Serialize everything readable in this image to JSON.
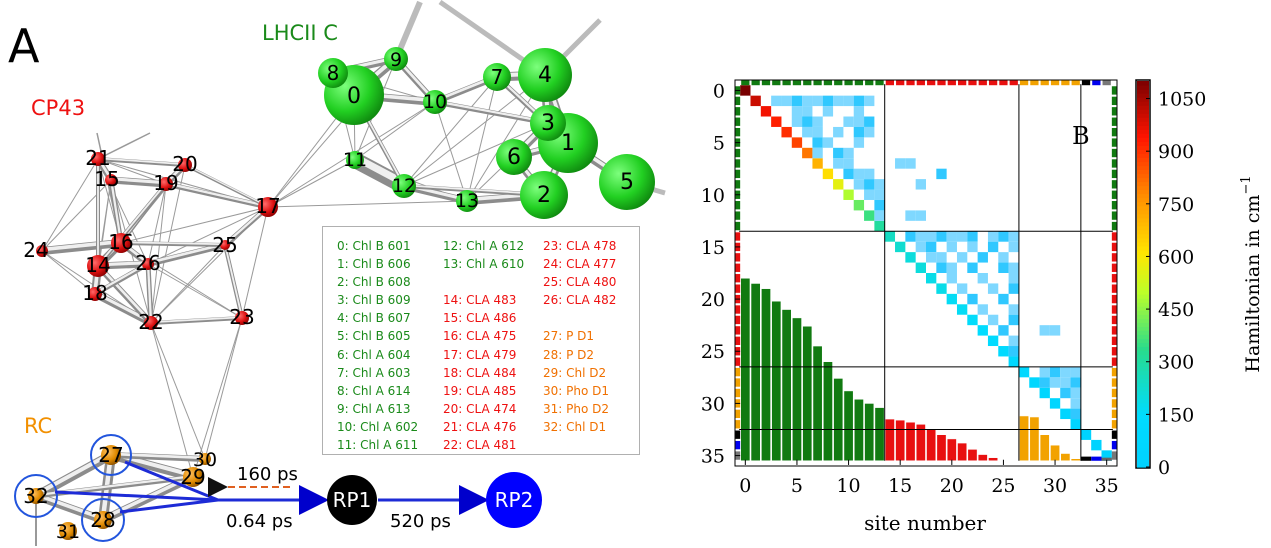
{
  "panel_a": {
    "letter": "A",
    "group_lhcii": {
      "text": "LHCII C",
      "color": "#1a8a1a"
    },
    "group_cp43": {
      "text": "CP43",
      "color": "#ee1111"
    },
    "group_rc": {
      "text": "RC",
      "color": "#f29000"
    },
    "node_labels": {
      "n0": "0",
      "n1": "1",
      "n2": "2",
      "n3": "3",
      "n4": "4",
      "n5": "5",
      "n6": "6",
      "n7": "7",
      "n8": "8",
      "n9": "9",
      "n10": "10",
      "n11": "11",
      "n12": "12",
      "n13": "13",
      "n14": "14",
      "n15": "15",
      "n16": "16",
      "n17": "17",
      "n18": "18",
      "n19": "19",
      "n20": "20",
      "n21": "21",
      "n22": "22",
      "n23": "23",
      "n24": "24",
      "n25": "25",
      "n26": "26",
      "n27": "27",
      "n28": "28",
      "n29": "29",
      "n30": "30",
      "n31": "31",
      "n32": "32"
    },
    "legend": {
      "col1": [
        "0: Chl B 601",
        "1: Chl B 606",
        "2: Chl B 608",
        "3: Chl B 609",
        "4: Chl B 607",
        "5: Chl B 605",
        "6: Chl A 604",
        "7: Chl A 603",
        "8: Chl A 614",
        "9: Chl A 613",
        "10: Chl A 602",
        "11: Chl A 611"
      ],
      "col2_green": [
        "12: Chl A 612",
        "13: Chl A 610"
      ],
      "col2_red": [
        "14: CLA 483",
        "15: CLA 486",
        "16: CLA 475",
        "17: CLA 479",
        "18: CLA 484",
        "19: CLA 485",
        "20: CLA 474",
        "21: CLA 476",
        "22: CLA 481"
      ],
      "col3_red": [
        "23: CLA 478",
        "24: CLA 477",
        "25: CLA 480",
        "26: CLA 482"
      ],
      "col3_orange": [
        "27: P D1",
        "28: P D2",
        "29: Chl D2",
        "30: Pho D1",
        "31: Pho D2",
        "32: Chl D1"
      ]
    },
    "kinetics": {
      "back_rate": "160 ps",
      "forward_rate": "0.64 ps",
      "rp1": "RP1",
      "rp2": "RP2",
      "rp_rate": "520 ps"
    },
    "colors": {
      "green": "#1a8a1a",
      "red": "#ee1111",
      "orange": "#f07000",
      "rp1": "#000000",
      "rp2": "#0000ff",
      "circle": "#2255dd"
    }
  },
  "panel_b": {
    "letter": "B",
    "xlabel": "site number",
    "colorbar_label": "Hamiltonian in cm",
    "colorbar_sup": "−1",
    "colorbar_ticks": [
      "0",
      "150",
      "300",
      "450",
      "600",
      "750",
      "900",
      "1050"
    ],
    "x_ticks": [
      "0",
      "5",
      "10",
      "15",
      "20",
      "25",
      "30",
      "35"
    ],
    "y_ticks": [
      "0",
      "5",
      "10",
      "15",
      "20",
      "25",
      "30",
      "35"
    ],
    "chart_data": {
      "type": "heatmap",
      "n_sites": 36,
      "xlabel": "site number",
      "xlim": [
        -1,
        36
      ],
      "ylim": [
        36,
        -1
      ],
      "colorbar": {
        "label": "Hamiltonian in cm−1",
        "min": 0,
        "max": 1100,
        "ticks": [
          0,
          150,
          300,
          450,
          600,
          750,
          900,
          1050
        ]
      },
      "diagonal_energies": [
        1100,
        1000,
        950,
        920,
        900,
        870,
        800,
        700,
        620,
        560,
        480,
        400,
        350,
        300,
        240,
        220,
        200,
        200,
        180,
        180,
        160,
        160,
        150,
        140,
        130,
        120,
        90,
        80,
        70,
        60,
        60,
        50,
        40,
        20,
        10,
        5
      ],
      "partition_boundaries": [
        13.5,
        26.5,
        32.5
      ],
      "lower_bars": {
        "green": [
          18.0,
          18.5,
          19.0,
          20.2,
          21.0,
          21.8,
          22.6,
          24.5,
          26.0,
          27.6,
          28.8,
          29.6,
          30.0,
          30.4
        ],
        "red": [
          31.5,
          31.6,
          31.8,
          32.0,
          32.5,
          33.0,
          33.4,
          33.8,
          34.4,
          34.9,
          35.2,
          35.5,
          35.7
        ],
        "orange": [
          31.2,
          31.3,
          33.0,
          34.0,
          34.8,
          35.3
        ],
        "tail": [
          35.2,
          35.1,
          35.3
        ]
      }
    }
  }
}
